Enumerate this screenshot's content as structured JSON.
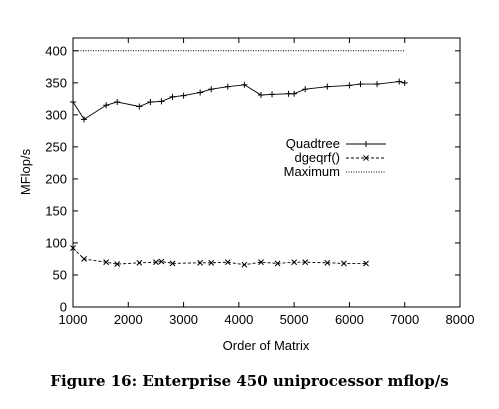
{
  "chart_data": {
    "type": "line",
    "xlabel": "Order of Matrix",
    "ylabel": "MFlop/s",
    "xlim": [
      1000,
      8000
    ],
    "ylim": [
      0,
      420
    ],
    "xticks": [
      1000,
      2000,
      3000,
      4000,
      5000,
      6000,
      7000,
      8000
    ],
    "yticks": [
      0,
      50,
      100,
      150,
      200,
      250,
      300,
      350,
      400
    ],
    "grid": false,
    "legend_position": "right-center",
    "series": [
      {
        "name": "Quadtree",
        "style": "solid",
        "marker": "plus",
        "x": [
          1000,
          1200,
          1600,
          1800,
          2200,
          2400,
          2600,
          2800,
          3000,
          3300,
          3500,
          3800,
          4100,
          4400,
          4600,
          4900,
          5000,
          5200,
          5600,
          6000,
          6200,
          6500,
          6900,
          7000
        ],
        "y": [
          320,
          293,
          315,
          320,
          313,
          320,
          321,
          328,
          330,
          335,
          340,
          344,
          347,
          331,
          332,
          333,
          333,
          340,
          344,
          346,
          348,
          348,
          352,
          350
        ]
      },
      {
        "name": "dgeqrf()",
        "style": "dashed",
        "marker": "x",
        "x": [
          1000,
          1200,
          1600,
          1800,
          2200,
          2500,
          2600,
          2800,
          3300,
          3500,
          3800,
          4100,
          4400,
          4700,
          5000,
          5200,
          5600,
          5900,
          6300
        ],
        "y": [
          92,
          75,
          70,
          67,
          69,
          70,
          71,
          68,
          69,
          69,
          70,
          66,
          70,
          68,
          70,
          70,
          69,
          68,
          68
        ]
      },
      {
        "name": "Maximum",
        "style": "dotted",
        "marker": "none",
        "x": [
          1000,
          7000
        ],
        "y": [
          400,
          400
        ]
      }
    ]
  },
  "caption": "Figure 16: Enterprise 450 uniprocessor mflop/s"
}
